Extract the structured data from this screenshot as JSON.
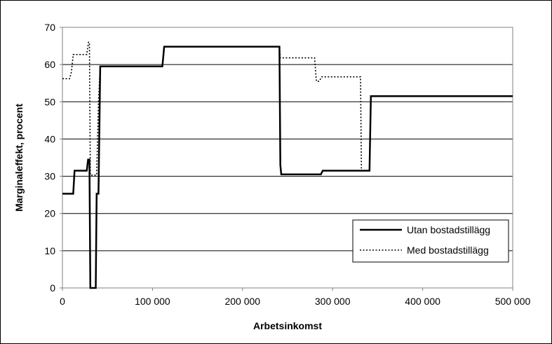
{
  "chart_data": {
    "type": "line",
    "xlabel": "Arbetsinkomst",
    "ylabel": "Marginaleffekt, procent",
    "xlim": [
      0,
      500000
    ],
    "ylim": [
      0,
      70
    ],
    "xticks": [
      0,
      100000,
      200000,
      300000,
      400000,
      500000
    ],
    "xtick_labels": [
      "0",
      "100 000",
      "200 000",
      "300 000",
      "400 000",
      "500 000"
    ],
    "yticks": [
      0,
      10,
      20,
      30,
      40,
      50,
      60,
      70
    ],
    "ytick_labels": [
      "0",
      "10",
      "20",
      "30",
      "40",
      "50",
      "60",
      "70"
    ],
    "grid": "horizontal",
    "legend_position": "bottom-right",
    "series": [
      {
        "name": "Utan bostadstillägg",
        "style": "solid",
        "color": "#000000",
        "points": [
          [
            0,
            25.3
          ],
          [
            12000,
            25.3
          ],
          [
            13500,
            31.5
          ],
          [
            27000,
            31.5
          ],
          [
            28500,
            34.5
          ],
          [
            30000,
            34.5
          ],
          [
            31000,
            0
          ],
          [
            37000,
            0
          ],
          [
            38000,
            25.3
          ],
          [
            40000,
            25.3
          ],
          [
            42000,
            59.5
          ],
          [
            111000,
            59.5
          ],
          [
            113000,
            64.8
          ],
          [
            241000,
            64.8
          ],
          [
            242000,
            33
          ],
          [
            243000,
            30.5
          ],
          [
            287000,
            30.5
          ],
          [
            289000,
            31.5
          ],
          [
            341000,
            31.5
          ],
          [
            342500,
            51.5
          ],
          [
            500000,
            51.5
          ]
        ]
      },
      {
        "name": "Med bostadstillägg",
        "style": "dotted",
        "color": "#000000",
        "points": [
          [
            0,
            56.2
          ],
          [
            8000,
            56.2
          ],
          [
            10000,
            58
          ],
          [
            12000,
            62.7
          ],
          [
            27000,
            62.7
          ],
          [
            29000,
            66
          ],
          [
            30000,
            66
          ],
          [
            31000,
            30.3
          ],
          [
            38000,
            30.3
          ],
          [
            40000,
            50
          ],
          [
            42000,
            59.5
          ],
          [
            111000,
            59.5
          ],
          [
            113000,
            64.8
          ],
          [
            241000,
            64.8
          ],
          [
            242000,
            61.8
          ],
          [
            280000,
            61.8
          ],
          [
            282000,
            55.5
          ],
          [
            285000,
            55.5
          ],
          [
            288000,
            56.7
          ],
          [
            331000,
            56.7
          ],
          [
            332000,
            31.5
          ],
          [
            341000,
            31.5
          ],
          [
            342500,
            51.5
          ],
          [
            500000,
            51.5
          ]
        ]
      }
    ]
  }
}
